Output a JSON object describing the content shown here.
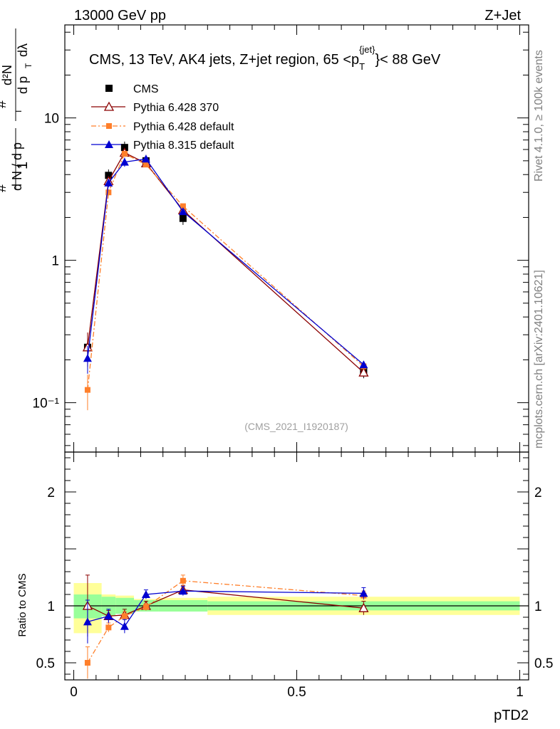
{
  "header": {
    "left": "13000 GeV pp",
    "right": "Z+Jet"
  },
  "side_labels": {
    "rivet": "Rivet 4.1.0, ≥ 100k events",
    "source": "mcplots.cern.ch [arXiv:2401.10621]"
  },
  "colors": {
    "cms": "#000000",
    "py6_370": "#8b0000",
    "py6_default": "#ff7f2a",
    "py8_default": "#0000d0",
    "band_inner": "#99ff99",
    "band_outer": "#ffff99"
  },
  "chart_data": {
    "type": "line",
    "title": "CMS, 13 TeV, AK4 jets, Z+jet region, 65 <p_T^{jet}< 88 GeV",
    "title_parts": {
      "pre": "CMS, 13 TeV, AK4 jets, Z+jet region, 65 <p",
      "sub": "T",
      "sup": "{jet}",
      "post": "}< 88 GeV"
    },
    "analysis_id": "(CMS_2021_I1920187)",
    "xlabel": "pTD2",
    "ylabel_main": "1/N dN/dpT dλ (d²N / dp_T dλ)",
    "ylabel_ratio": "Ratio to CMS",
    "xlim": [
      -0.02,
      1.02
    ],
    "ylim_main": [
      0.045,
      45
    ],
    "ylim_ratio": [
      0.35,
      2.35
    ],
    "x_ticks": [
      0,
      0.5,
      1
    ],
    "x_tick_labels": [
      "0",
      "0.5",
      "1"
    ],
    "y_ticks_main": [
      0.1,
      1,
      10
    ],
    "y_tick_labels_main": [
      "10⁻¹",
      "1",
      "10"
    ],
    "y_ticks_ratio": [
      0.5,
      1,
      2
    ],
    "y_tick_labels_ratio": [
      "0.5",
      "1",
      "2"
    ],
    "bins": [
      {
        "lo": 0.0,
        "hi": 0.0625,
        "x": 0.031
      },
      {
        "lo": 0.0625,
        "hi": 0.09375,
        "x": 0.078
      },
      {
        "lo": 0.09375,
        "hi": 0.135,
        "x": 0.114
      },
      {
        "lo": 0.135,
        "hi": 0.19,
        "x": 0.162
      },
      {
        "lo": 0.19,
        "hi": 0.3,
        "x": 0.245
      },
      {
        "lo": 0.3,
        "hi": 1.0,
        "x": 0.65
      }
    ],
    "data_band_ratio": {
      "inner": [
        [
          0.89,
          1.1
        ],
        [
          0.91,
          1.08
        ],
        [
          0.93,
          1.07
        ],
        [
          0.95,
          1.05
        ],
        [
          0.95,
          1.05
        ],
        [
          0.96,
          1.04
        ]
      ],
      "outer": [
        [
          0.78,
          1.18
        ],
        [
          0.91,
          1.08
        ],
        [
          0.93,
          1.07
        ],
        [
          0.95,
          1.05
        ],
        [
          0.95,
          1.05
        ],
        [
          0.96,
          1.04
        ]
      ]
    },
    "data_band_ratio_outer_extra": [
      [
        0.76,
        1.2
      ],
      [
        0.95,
        1.1
      ],
      [
        0.95,
        1.09
      ],
      [
        0.96,
        1.06
      ],
      [
        0.96,
        1.07
      ],
      [
        0.92,
        1.08
      ]
    ],
    "series": [
      {
        "name": "CMS",
        "key": "cms",
        "marker": "square",
        "values": [
          0.245,
          3.95,
          6.2,
          5.0,
          1.97,
          0.165
        ],
        "ratio": [
          1.0,
          1.0,
          1.0,
          1.0,
          1.0,
          1.0
        ]
      },
      {
        "name": "Pythia 6.428 370",
        "key": "py6_370",
        "marker": "open-triangle",
        "line": "solid",
        "values": [
          0.245,
          3.6,
          5.7,
          4.8,
          2.25,
          0.163
        ],
        "ratio": [
          1.0,
          0.91,
          0.92,
          1.0,
          1.14,
          0.98
        ],
        "ratio_err": [
          0.27,
          0.05,
          0.05,
          0.04,
          0.04,
          0.06
        ]
      },
      {
        "name": "Pythia 6.428 default",
        "key": "py6_default",
        "marker": "square",
        "line": "dashdot",
        "values": [
          0.123,
          3.0,
          5.6,
          4.7,
          2.4,
          0.18
        ],
        "ratio": [
          0.5,
          0.81,
          0.91,
          0.99,
          1.22,
          1.09
        ],
        "ratio_err": [
          0.14,
          0.04,
          0.04,
          0.03,
          0.05,
          0.04
        ]
      },
      {
        "name": "Pythia 8.315 default",
        "key": "py8_default",
        "marker": "triangle",
        "line": "solid",
        "values": [
          0.205,
          3.5,
          4.9,
          5.15,
          2.2,
          0.185
        ],
        "ratio": [
          0.86,
          0.91,
          0.82,
          1.1,
          1.13,
          1.11
        ],
        "ratio_err": [
          0.19,
          0.06,
          0.06,
          0.04,
          0.04,
          0.05
        ]
      }
    ]
  }
}
